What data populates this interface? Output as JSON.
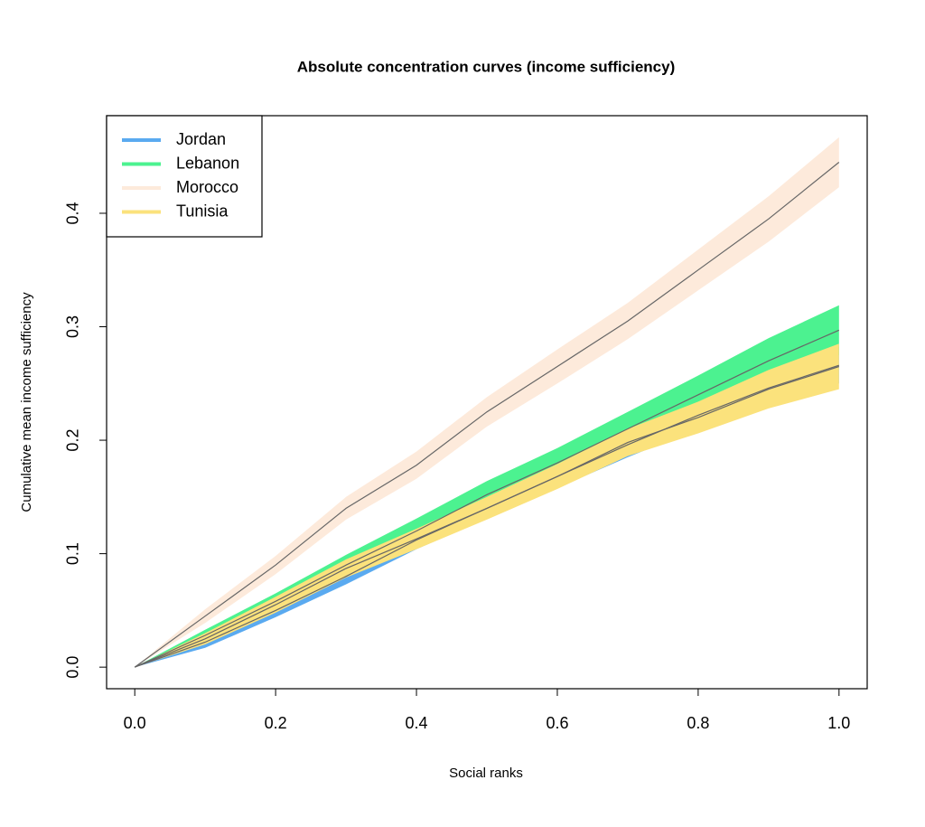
{
  "chart_data": {
    "type": "band-line",
    "title": "Absolute concentration curves (income sufficiency)",
    "xlabel": "Social ranks",
    "ylabel": "Cumulative mean income sufficiency",
    "x": [
      0,
      0.1,
      0.2,
      0.3,
      0.4,
      0.5,
      0.6,
      0.7,
      0.8,
      0.9,
      1.0
    ],
    "xlim": [
      -0.04,
      1.04
    ],
    "ylim": [
      -0.019,
      0.486
    ],
    "xticks": [
      {
        "value": 0,
        "label": "0.0"
      },
      {
        "value": 0.2,
        "label": "0.2"
      },
      {
        "value": 0.4,
        "label": "0.4"
      },
      {
        "value": 0.6,
        "label": "0.6"
      },
      {
        "value": 0.8,
        "label": "0.8"
      },
      {
        "value": 1.0,
        "label": "1.0"
      }
    ],
    "yticks": [
      {
        "value": 0,
        "label": "0.0"
      },
      {
        "value": 0.1,
        "label": "0.1"
      },
      {
        "value": 0.2,
        "label": "0.2"
      },
      {
        "value": 0.3,
        "label": "0.3"
      },
      {
        "value": 0.4,
        "label": "0.4"
      }
    ],
    "line_color": "#666666",
    "legend": "topleft",
    "series": [
      {
        "name": "Jordan",
        "color": "#5aaaf0",
        "values": [
          0,
          0.022,
          0.05,
          0.08,
          0.112,
          0.14,
          0.168,
          0.196,
          0.222,
          0.246,
          0.266
        ],
        "lower": [
          0,
          0.017,
          0.044,
          0.073,
          0.104,
          0.131,
          0.158,
          0.185,
          0.21,
          0.232,
          0.25
        ],
        "upper": [
          0,
          0.027,
          0.056,
          0.087,
          0.12,
          0.149,
          0.178,
          0.207,
          0.234,
          0.26,
          0.282
        ]
      },
      {
        "name": "Lebanon",
        "color": "#4cf290",
        "values": [
          0,
          0.028,
          0.058,
          0.09,
          0.12,
          0.152,
          0.18,
          0.21,
          0.24,
          0.27,
          0.297
        ],
        "lower": [
          0,
          0.023,
          0.051,
          0.081,
          0.109,
          0.14,
          0.167,
          0.195,
          0.223,
          0.25,
          0.275
        ],
        "upper": [
          0,
          0.033,
          0.065,
          0.099,
          0.131,
          0.164,
          0.193,
          0.225,
          0.257,
          0.29,
          0.319
        ]
      },
      {
        "name": "Morocco",
        "color": "#fdeadb",
        "values": [
          0,
          0.045,
          0.09,
          0.14,
          0.178,
          0.225,
          0.265,
          0.305,
          0.35,
          0.395,
          0.445
        ],
        "lower": [
          0,
          0.039,
          0.082,
          0.13,
          0.166,
          0.212,
          0.25,
          0.289,
          0.332,
          0.375,
          0.423
        ],
        "upper": [
          0,
          0.051,
          0.098,
          0.15,
          0.19,
          0.238,
          0.28,
          0.321,
          0.368,
          0.415,
          0.467
        ]
      },
      {
        "name": "Tunisia",
        "color": "#fbe27c",
        "values": [
          0,
          0.025,
          0.055,
          0.087,
          0.113,
          0.14,
          0.168,
          0.198,
          0.22,
          0.245,
          0.265
        ],
        "lower": [
          0,
          0.02,
          0.048,
          0.079,
          0.104,
          0.13,
          0.157,
          0.186,
          0.206,
          0.228,
          0.245
        ],
        "upper": [
          0,
          0.03,
          0.062,
          0.095,
          0.122,
          0.15,
          0.179,
          0.21,
          0.234,
          0.262,
          0.285
        ]
      }
    ]
  }
}
